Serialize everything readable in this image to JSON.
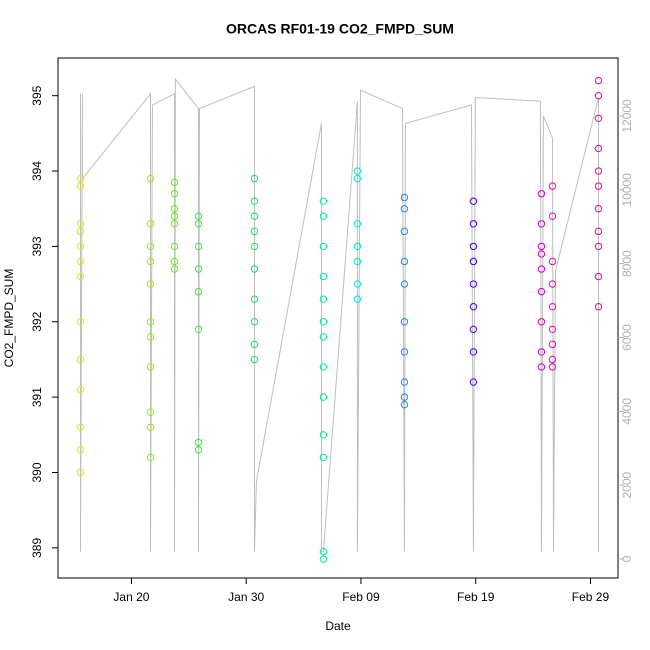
{
  "chart_data": {
    "type": "scatter",
    "title": "ORCAS RF01-19 CO2_FMPD_SUM",
    "x_label": "Date",
    "y_label": "CO2_FMPD_SUM",
    "xlim": [
      13.6,
      62.4
    ],
    "xticks": [
      {
        "value": 20,
        "label": "Jan 20"
      },
      {
        "value": 30,
        "label": "Jan 30"
      },
      {
        "value": 40,
        "label": "Feb 09"
      },
      {
        "value": 50,
        "label": "Feb 19"
      },
      {
        "value": 60,
        "label": "Feb 29"
      }
    ],
    "ylim": [
      388.6,
      395.5
    ],
    "yticks": [
      389,
      390,
      391,
      392,
      393,
      394,
      395
    ],
    "y2lim": [
      -515,
      13570
    ],
    "y2ticks": [
      0,
      2000,
      4000,
      6000,
      8000,
      10000,
      12000
    ],
    "y2_color": "#b0b0b0",
    "series": [
      {
        "color": "#e6e600",
        "x": [
          15.56,
          15.56,
          15.56,
          15.56,
          15.56,
          15.56,
          15.56,
          15.56,
          15.56,
          15.56,
          15.56,
          15.56,
          15.56
        ],
        "values": [
          393.9,
          393.8,
          393.2,
          393.0,
          392.8,
          392.6,
          392.0,
          391.5,
          391.1,
          390.6,
          390.3,
          390.0,
          393.3
        ]
      },
      {
        "color": "#99ee00",
        "x": [
          21.66,
          21.66,
          21.66,
          21.66,
          21.66,
          21.66,
          21.66,
          21.66,
          21.66,
          21.66,
          21.66
        ],
        "values": [
          393.9,
          393.3,
          392.8,
          392.5,
          392.0,
          391.8,
          391.4,
          390.8,
          390.6,
          390.2,
          393.0
        ]
      },
      {
        "color": "#66ee00",
        "x": [
          23.75,
          23.75,
          23.75,
          23.75,
          23.75,
          23.75,
          23.75,
          23.75
        ],
        "values": [
          393.85,
          393.7,
          393.5,
          393.3,
          393.0,
          392.8,
          392.7,
          393.4
        ]
      },
      {
        "color": "#33ee33",
        "x": [
          25.84,
          25.84,
          25.84,
          25.84,
          25.84,
          25.84,
          25.84,
          25.84
        ],
        "values": [
          393.4,
          393.3,
          393.0,
          392.7,
          392.4,
          391.9,
          390.4,
          390.3
        ]
      },
      {
        "color": "#00ee55",
        "x": [
          30.72,
          30.72,
          30.72,
          30.72,
          30.72,
          30.72,
          30.72,
          30.72,
          30.72,
          30.72
        ],
        "values": [
          393.9,
          393.6,
          393.4,
          393.0,
          392.7,
          392.3,
          392.0,
          391.7,
          391.5,
          393.2
        ]
      },
      {
        "color": "#00e6a0",
        "x": [
          36.73,
          36.73,
          36.73,
          36.73,
          36.73,
          36.73,
          36.73,
          36.73,
          36.73,
          36.73,
          36.73,
          36.73,
          36.73
        ],
        "values": [
          393.6,
          393.4,
          393.0,
          392.6,
          392.3,
          392.0,
          391.8,
          391.4,
          391.0,
          390.5,
          390.2,
          388.95,
          388.85
        ]
      },
      {
        "color": "#00e6e6",
        "x": [
          39.69,
          39.69,
          39.69,
          39.69,
          39.69,
          39.69,
          39.69
        ],
        "values": [
          394.0,
          393.9,
          393.3,
          393.0,
          392.8,
          392.5,
          392.3
        ]
      },
      {
        "color": "#1e88ee",
        "x": [
          43.79,
          43.79,
          43.79,
          43.79,
          43.79,
          43.79,
          43.79,
          43.79,
          43.79,
          43.79
        ],
        "values": [
          393.65,
          393.5,
          393.2,
          392.8,
          392.5,
          392.0,
          391.6,
          391.2,
          391.0,
          390.9
        ]
      },
      {
        "color": "#4400dd",
        "x": [
          49.8,
          49.8,
          49.8,
          49.8,
          49.8,
          49.8,
          49.8,
          49.8,
          49.8
        ],
        "values": [
          393.6,
          393.3,
          393.0,
          392.8,
          392.5,
          392.2,
          391.9,
          391.6,
          391.2
        ]
      },
      {
        "color": "#cc00cc",
        "x": [
          55.73,
          55.73,
          55.73,
          55.73,
          55.73,
          55.73,
          55.73,
          55.73,
          55.73
        ],
        "values": [
          393.7,
          393.3,
          393.0,
          392.7,
          392.4,
          392.0,
          391.6,
          391.4,
          392.9
        ]
      },
      {
        "color": "#ee00bb",
        "x": [
          56.69,
          56.69,
          56.69,
          56.69,
          56.69,
          56.69,
          56.69,
          56.69,
          56.69
        ],
        "values": [
          393.8,
          393.4,
          392.8,
          392.2,
          391.9,
          391.7,
          391.5,
          391.4,
          392.5
        ]
      },
      {
        "color": "#ee0099",
        "x": [
          60.7,
          60.7,
          60.7,
          60.7,
          60.7,
          60.7,
          60.7,
          60.7,
          60.7,
          60.7,
          60.7
        ],
        "values": [
          395.2,
          395.0,
          394.7,
          394.3,
          394.0,
          393.8,
          393.5,
          393.0,
          392.6,
          392.2,
          393.2
        ]
      },
      {
        "color": "#bebebe",
        "axis": "y2",
        "x": [
          15.56,
          15.56,
          15.73,
          15.73,
          21.66,
          21.66,
          21.83,
          23.75,
          23.75,
          23.83,
          25.84,
          25.84,
          25.93,
          30.72,
          30.72,
          30.89,
          36.56,
          36.56,
          36.73,
          39.69,
          39.69,
          39.96,
          43.62,
          43.79,
          43.88,
          49.63,
          49.8,
          49.97,
          55.64,
          55.73,
          55.9,
          56.69,
          56.78,
          56.95,
          60.7,
          60.7
        ],
        "values": [
          12600,
          200,
          12600,
          10300,
          12600,
          200,
          12300,
          12600,
          200,
          13000,
          12200,
          200,
          12200,
          12800,
          200,
          2100,
          11800,
          200,
          200,
          12400,
          200,
          12700,
          12200,
          200,
          11800,
          12300,
          200,
          12500,
          12400,
          200,
          12000,
          11400,
          200,
          7800,
          12500,
          200
        ]
      }
    ]
  }
}
